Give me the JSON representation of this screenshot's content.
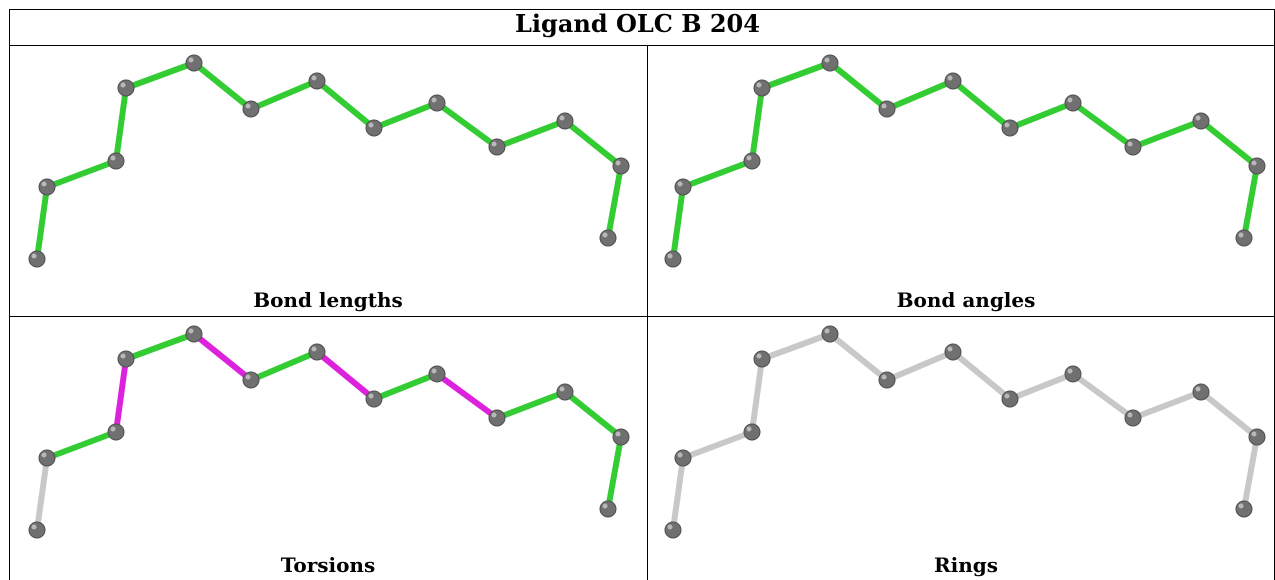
{
  "title": "Ligand OLC B 204",
  "panels": [
    {
      "caption": "Bond lengths",
      "bond_colors": [
        "green",
        "green",
        "green",
        "green",
        "green",
        "green",
        "green",
        "green",
        "green",
        "green",
        "green",
        "green",
        "green",
        "green",
        "green"
      ]
    },
    {
      "caption": "Bond angles",
      "bond_colors": [
        "green",
        "green",
        "green",
        "green",
        "green",
        "green",
        "green",
        "green",
        "green",
        "green",
        "green",
        "green",
        "green",
        "green",
        "green"
      ]
    },
    {
      "caption": "Torsions",
      "bond_colors": [
        "grey",
        "green",
        "magenta",
        "green",
        "magenta",
        "green",
        "magenta",
        "green",
        "magenta",
        "green",
        "green",
        "green",
        "green",
        "grey",
        "green"
      ]
    },
    {
      "caption": "Rings",
      "bond_colors": [
        "grey",
        "grey",
        "grey",
        "grey",
        "grey",
        "grey",
        "grey",
        "grey",
        "grey",
        "grey",
        "grey",
        "grey",
        "grey",
        "grey",
        "grey"
      ]
    }
  ],
  "colors": {
    "green": "#33cc33",
    "magenta": "#dd22dd",
    "grey": "#c8c8c8",
    "atom": "#707070"
  }
}
